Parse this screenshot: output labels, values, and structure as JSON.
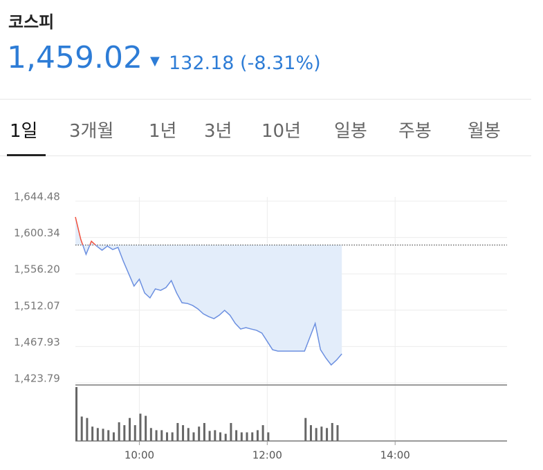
{
  "header": {
    "title": "코스피",
    "price": "1,459.02",
    "arrow": "▼",
    "change": "132.18 (-8.31%)"
  },
  "tabs": [
    "1일",
    "3개월",
    "1년",
    "3년",
    "10년",
    "일봉",
    "주봉",
    "월봉"
  ],
  "chart_data": {
    "type": "line",
    "x": [
      "09:00",
      "09:05",
      "09:10",
      "09:15",
      "09:20",
      "09:25",
      "09:30",
      "09:35",
      "09:40",
      "09:45",
      "09:50",
      "09:55",
      "10:00",
      "10:05",
      "10:10",
      "10:15",
      "10:20",
      "10:25",
      "10:30",
      "10:35",
      "10:40",
      "10:45",
      "10:50",
      "10:55",
      "11:00",
      "11:05",
      "11:10",
      "11:15",
      "11:20",
      "11:25",
      "11:30",
      "11:35",
      "11:40",
      "11:45",
      "11:50",
      "11:55",
      "12:00",
      "12:05",
      "12:10",
      "12:15",
      "12:20",
      "12:25",
      "12:30",
      "12:35",
      "12:40",
      "12:45",
      "12:50",
      "12:55",
      "13:00",
      "13:05",
      "13:10"
    ],
    "series": [
      {
        "color": "#6b8fe0",
        "values": [
          1625.2,
          1598.3,
          1579.9,
          1595.8,
          1589.9,
          1584.9,
          1589.9,
          1585.7,
          1588.3,
          1571.5,
          1556.4,
          1541.3,
          1549.7,
          1532.9,
          1527.0,
          1537.9,
          1536.2,
          1539.6,
          1548.0,
          1532.9,
          1521.1,
          1520.3,
          1517.8,
          1513.6,
          1507.7,
          1504.3,
          1501.8,
          1506.0,
          1511.9,
          1506.0,
          1496.0,
          1489.2,
          1490.9,
          1489.2,
          1487.6,
          1484.2,
          1474.2,
          1464.1,
          1462.4,
          1462.4,
          1462.4,
          1462.4,
          1462.4,
          1462.4,
          1479.2,
          1496.0,
          1464.1,
          1454.0,
          1445.6,
          1451.5,
          1459.02
        ]
      }
    ],
    "volume": {
      "color": "#666666",
      "values": [
        75,
        34,
        32,
        20,
        18,
        17,
        15,
        12,
        26,
        22,
        32,
        22,
        38,
        35,
        18,
        15,
        15,
        12,
        12,
        25,
        22,
        18,
        12,
        20,
        25,
        14,
        15,
        12,
        10,
        25,
        15,
        12,
        12,
        12,
        15,
        22,
        12,
        null,
        null,
        null,
        null,
        null,
        null,
        32,
        22,
        18,
        20,
        18,
        25,
        22,
        null
      ]
    },
    "reference": 1591.2,
    "reference_color": "#f0503c",
    "fill": "#e3edfa",
    "xlim": [
      "09:00",
      "15:45"
    ],
    "xticks": [
      "10:00",
      "12:00",
      "14:00"
    ],
    "ylim": [
      1423.79,
      1644.48
    ],
    "yticks": [
      {
        "value": 1423.79,
        "label": "1,423.79"
      },
      {
        "value": 1467.93,
        "label": "1,467.93"
      },
      {
        "value": 1512.07,
        "label": "1,512.07"
      },
      {
        "value": 1556.2,
        "label": "1,556.20"
      },
      {
        "value": 1600.34,
        "label": "1,600.34"
      },
      {
        "value": 1644.48,
        "label": "1,644.48"
      }
    ],
    "grid": true
  }
}
